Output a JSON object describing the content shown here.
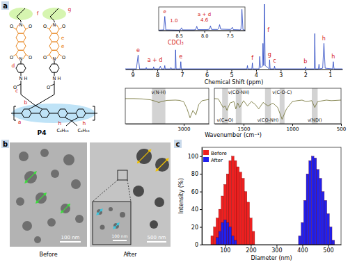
{
  "panel_labels": [
    "a",
    "b",
    "c"
  ],
  "structure": {
    "name": "P4",
    "substituent": "C₆H₁₃",
    "atom_labels": [
      "O",
      "N",
      "H"
    ],
    "proton_labels": [
      "a",
      "b",
      "c",
      "d",
      "e",
      "f",
      "g",
      "h"
    ]
  },
  "chart_data": [
    {
      "type": "line",
      "color": "#1f3fbf",
      "x_label": "Chemical Shift (ppm)",
      "xlim": [
        9.3,
        0.5
      ],
      "xticks": [
        9,
        8,
        7,
        6,
        5,
        4,
        3,
        2,
        1
      ],
      "ylim": [
        0,
        100
      ],
      "tick_labels": "x",
      "x": [
        9.3,
        8.85,
        8.78,
        8.72,
        8.47,
        8.45,
        8.43,
        8.17,
        8.15,
        8.13,
        7.92,
        7.88,
        7.84,
        7.72,
        7.7,
        7.68,
        7.47,
        7.45,
        7.43,
        7.28,
        7.26,
        7.24,
        7.07,
        7.05,
        7.03,
        4.37,
        4.35,
        4.33,
        4.17,
        4.15,
        4.13,
        3.88,
        3.85,
        3.82,
        3.74,
        3.72,
        3.69,
        3.66,
        3.63,
        3.47,
        3.45,
        3.43,
        3.27,
        3.25,
        3.23,
        2.02,
        2.0,
        1.98,
        1.64,
        1.62,
        1.6,
        1.47,
        1.45,
        1.43,
        1.3,
        1.25,
        1.2,
        0.9,
        0.87,
        0.84,
        0.5
      ],
      "values": [
        1,
        1,
        22,
        1,
        1,
        3,
        1,
        1,
        4,
        1,
        1,
        5,
        1,
        1,
        6,
        1,
        1,
        3,
        1,
        1,
        30,
        1,
        1,
        12,
        1,
        1,
        6,
        1,
        1,
        10,
        1,
        1,
        20,
        3,
        5,
        40,
        6,
        100,
        6,
        1,
        15,
        1,
        1,
        5,
        1,
        1,
        4,
        1,
        1,
        55,
        1,
        1,
        8,
        1,
        2,
        40,
        2,
        1,
        12,
        1,
        1
      ],
      "annotations": [
        {
          "text": "CDCl₃",
          "x": 7.26,
          "y": 36
        },
        {
          "text": "e",
          "x": 8.78,
          "y": 25
        },
        {
          "text": "a + d",
          "x": 8.1,
          "y": 10
        },
        {
          "text": "e",
          "x": 7.05,
          "y": 15
        },
        {
          "text": "f",
          "x": 4.15,
          "y": 13
        },
        {
          "text": "f",
          "x": 3.5,
          "y": 55
        },
        {
          "text": "g",
          "x": 3.45,
          "y": 18
        },
        {
          "text": "c",
          "x": 3.25,
          "y": 8
        },
        {
          "text": "b",
          "x": 2.0,
          "y": 7
        },
        {
          "text": "h",
          "x": 1.25,
          "y": 43
        },
        {
          "text": "h",
          "x": 0.87,
          "y": 15
        }
      ]
    },
    {
      "type": "line",
      "color": "#1f3fbf",
      "xlim": [
        8.9,
        7.2
      ],
      "xticks": [
        8.5,
        {
          "value": 8,
          "label": "8.0"
        },
        7.5
      ],
      "ylim": [
        0,
        100
      ],
      "tick_labels": "x",
      "x": [
        8.9,
        8.8,
        8.78,
        8.76,
        8.5,
        8.47,
        8.45,
        8.43,
        8.2,
        8.17,
        8.15,
        8.13,
        7.95,
        7.9,
        7.88,
        7.86,
        7.74,
        7.72,
        7.7,
        7.68,
        7.5,
        7.47,
        7.45,
        7.43,
        7.3,
        7.28,
        7.26,
        7.24,
        7.2
      ],
      "values": [
        2,
        3,
        60,
        3,
        2,
        4,
        12,
        3,
        3,
        5,
        18,
        4,
        4,
        6,
        20,
        5,
        5,
        8,
        25,
        6,
        5,
        6,
        14,
        4,
        3,
        5,
        90,
        4,
        2
      ],
      "annotations": [
        {
          "text": "e",
          "x": 8.78,
          "y": 68
        },
        {
          "text": "1.0",
          "x": 8.6,
          "y": 30
        },
        {
          "text": "a + d",
          "x": 8.0,
          "y": 55
        },
        {
          "text": "4.6",
          "x": 8.0,
          "y": 33
        }
      ]
    },
    {
      "type": "line",
      "color": "#6b6b2b",
      "xlim": [
        3700,
        2700
      ],
      "xticks": [
        3000
      ],
      "ylim": [
        0,
        120
      ],
      "tick_labels": "x",
      "x": [
        3700,
        3600,
        3500,
        3400,
        3350,
        3300,
        3250,
        3200,
        3100,
        3050,
        3000,
        2960,
        2925,
        2890,
        2855,
        2820,
        2780,
        2700
      ],
      "values": [
        85,
        85,
        84,
        81,
        77,
        72,
        76,
        79,
        80,
        79,
        74,
        50,
        20,
        45,
        30,
        65,
        78,
        82
      ],
      "bands": [
        {
          "label": "ν(N-H)",
          "range": [
            3380,
            3220
          ]
        }
      ]
    },
    {
      "type": "line",
      "color": "#6b6b2b",
      "x_label": "Wavenumber (cm⁻¹)",
      "xlim": [
        1800,
        500
      ],
      "xticks": [
        1500,
        1000,
        500
      ],
      "ylim": [
        0,
        120
      ],
      "tick_labels": "x",
      "x": [
        1800,
        1760,
        1710,
        1690,
        1670,
        1640,
        1600,
        1580,
        1560,
        1540,
        1500,
        1460,
        1420,
        1380,
        1345,
        1300,
        1250,
        1200,
        1150,
        1105,
        1060,
        1000,
        950,
        900,
        860,
        800,
        770,
        740,
        650,
        600,
        500
      ],
      "values": [
        85,
        84,
        55,
        60,
        45,
        70,
        75,
        50,
        70,
        55,
        78,
        60,
        75,
        65,
        50,
        72,
        60,
        70,
        55,
        15,
        50,
        75,
        78,
        80,
        75,
        78,
        55,
        75,
        80,
        78,
        80
      ],
      "bands": [
        {
          "label": "ν(C=O)",
          "range": [
            1720,
            1660
          ]
        },
        {
          "label": "ν(CO-NH)",
          "range": [
            1580,
            1520
          ]
        },
        {
          "label": "ν(CO-NH)",
          "range": [
            1280,
            1220
          ]
        },
        {
          "label": "ν(C-O-C)",
          "range": [
            1130,
            1080
          ]
        },
        {
          "label": "ν(NDI)",
          "range": [
            800,
            740
          ]
        }
      ]
    },
    {
      "type": "histogram",
      "x_label": "Diameter (nm)",
      "y_label": "Intensity (%)",
      "xlim": [
        10,
        550
      ],
      "xticks": [
        100,
        200,
        300,
        400,
        500
      ],
      "ylim": [
        0,
        110
      ],
      "yticks": [
        0,
        20,
        40,
        60,
        80,
        100
      ],
      "legend": "upper left",
      "series": [
        {
          "name": "Before",
          "color": "#ee2020",
          "bins": [
            45,
            55,
            65,
            75,
            85,
            95,
            105,
            115,
            125,
            135,
            145,
            155,
            165,
            175,
            185,
            195,
            205,
            215
          ],
          "values": [
            10,
            20,
            30,
            40,
            55,
            68,
            80,
            95,
            100,
            95,
            88,
            82,
            75,
            60,
            48,
            30,
            15
          ]
        },
        {
          "name": "After",
          "color": "#2020ee",
          "bins": [
            65,
            75,
            85,
            95,
            105,
            115,
            125,
            135,
            145,
            155,
            165,
            175,
            185,
            195,
            205,
            215,
            225,
            235,
            245,
            255,
            265,
            275,
            285,
            295,
            305,
            315,
            325,
            335,
            345,
            355,
            365,
            375,
            385,
            395,
            405,
            415,
            425,
            435,
            445,
            455,
            465,
            475,
            485,
            495,
            505,
            515,
            525
          ],
          "values": [
            8,
            15,
            25,
            28,
            25,
            20,
            10,
            5,
            0,
            0,
            0,
            0,
            0,
            0,
            0,
            0,
            0,
            0,
            0,
            0,
            0,
            0,
            0,
            0,
            0,
            0,
            0,
            0,
            0,
            0,
            0,
            0,
            10,
            25,
            50,
            80,
            95,
            100,
            98,
            85,
            75,
            60,
            50,
            35,
            20,
            5
          ]
        }
      ]
    }
  ],
  "tem": {
    "images": [
      {
        "caption": "Before",
        "scale_bar": "100 nm"
      },
      {
        "caption": "After",
        "scale_bar": "500 nm",
        "inset_scale_bar": "100 nm"
      }
    ]
  }
}
